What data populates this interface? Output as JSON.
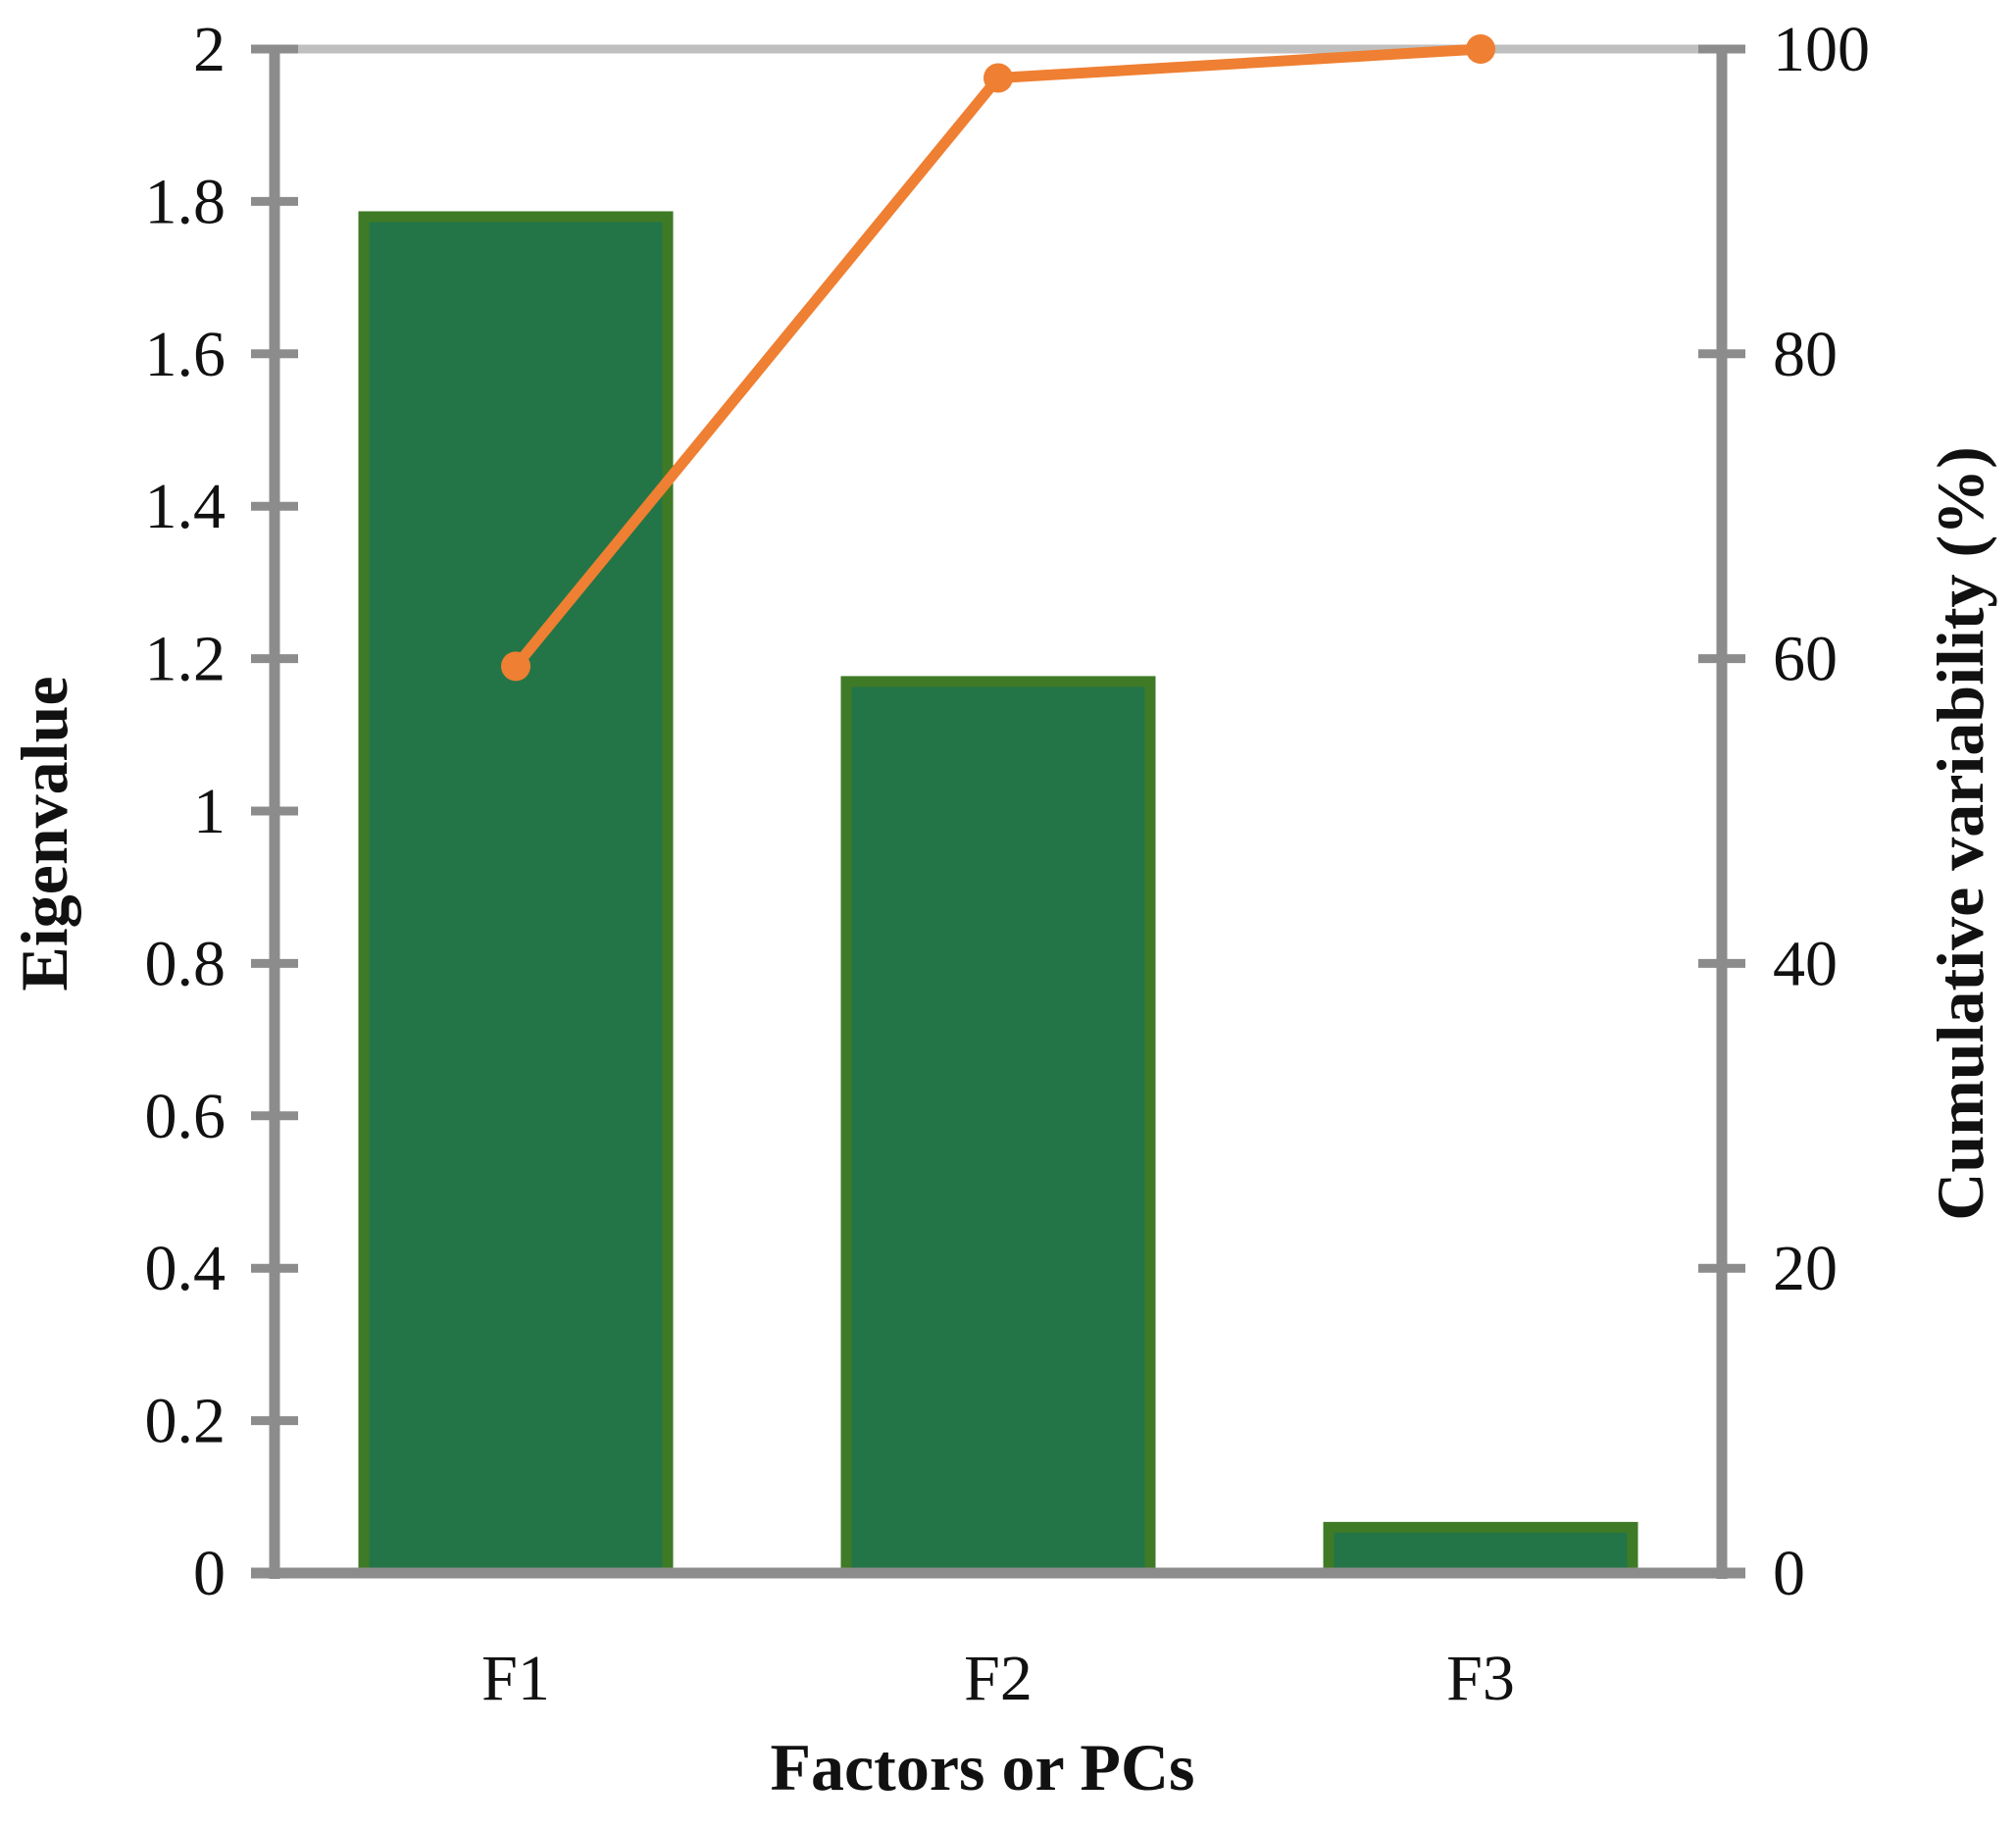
{
  "chart_data": {
    "type": "bar+line",
    "title": "",
    "xlabel": "Factors or PCs",
    "ylabel": "Eigenvalue",
    "y2label": "Cumulative variability (%)",
    "categories": [
      "F1",
      "F2",
      "F3"
    ],
    "ylim": [
      0,
      2
    ],
    "y2lim": [
      0,
      100
    ],
    "yticks": [
      "0",
      "0.2",
      "0.4",
      "0.6",
      "0.8",
      "1",
      "1.2",
      "1.4",
      "1.6",
      "1.8",
      "2"
    ],
    "y2ticks": [
      "0",
      "20",
      "40",
      "60",
      "80",
      "100"
    ],
    "grid": "top-gridline-only",
    "legend": "none",
    "series": [
      {
        "kind": "bar",
        "axis": "left",
        "values": [
          1.78,
          1.17,
          0.06
        ]
      },
      {
        "kind": "line",
        "axis": "right",
        "values": [
          59.5,
          98.1,
          100
        ]
      }
    ],
    "colors": {
      "bar_fill": "#237547",
      "bar_edge": "#3f7a26",
      "line": "#ef7f32",
      "axis": "#8c8c8c",
      "gridline": "#bfbfbf"
    }
  }
}
